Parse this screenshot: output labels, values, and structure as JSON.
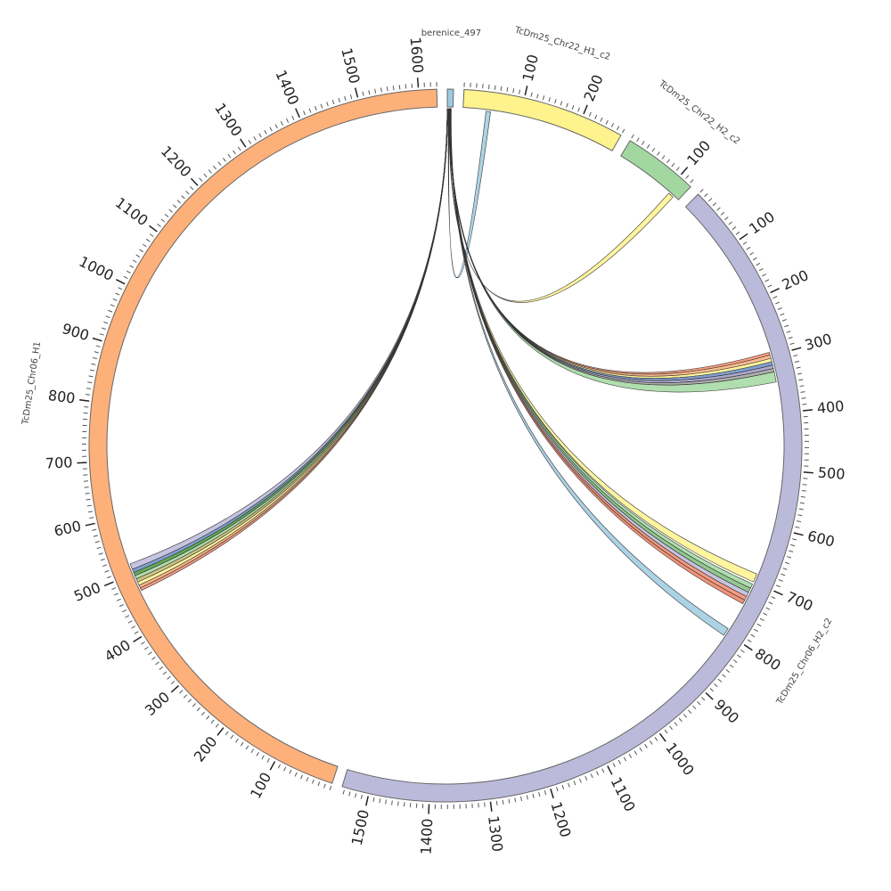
{
  "chart_data": {
    "type": "circos",
    "minor_tick_step": 10,
    "segments": [
      {
        "name": "berenice_497",
        "length": 10,
        "color": "#9ecae1",
        "ticks": []
      },
      {
        "name": "TcDm25_Chr22_H1_c2",
        "length": 270,
        "color": "#fef38d",
        "ticks": [
          100,
          200
        ]
      },
      {
        "name": "TcDm25_Chr22_H2_c2",
        "length": 125,
        "color": "#a2d8a0",
        "ticks": [
          100
        ]
      },
      {
        "name": "TcDm25_Chr06_H2_c2",
        "length": 1545,
        "color": "#bcbadb",
        "ticks": [
          100,
          200,
          300,
          400,
          500,
          600,
          700,
          800,
          900,
          1000,
          1100,
          1200,
          1300,
          1400,
          1500
        ]
      },
      {
        "name": "TcDm25_Chr06_H1",
        "length": 1630,
        "color": "#fdb07a",
        "ticks": [
          100,
          200,
          300,
          400,
          500,
          600,
          700,
          800,
          900,
          1000,
          1100,
          1200,
          1300,
          1400,
          1500,
          1600
        ]
      }
    ],
    "links": [
      {
        "source": [
          2,
          3
        ],
        "target": "TcDm25_Chr22_H1_c2",
        "target_range": [
          40,
          48
        ],
        "color": "#9ecae1"
      },
      {
        "source": [
          3,
          4
        ],
        "target": "TcDm25_Chr22_H2_c2",
        "target_range": [
          105,
          115
        ],
        "color": "#fef38d"
      },
      {
        "source": [
          4,
          5
        ],
        "target": "TcDm25_Chr06_H2_c2",
        "target_range": [
          293,
          298
        ],
        "color": "#f4896b"
      },
      {
        "source": [
          4,
          5
        ],
        "target": "TcDm25_Chr06_H2_c2",
        "target_range": [
          298,
          304
        ],
        "color": "#fdb07a"
      },
      {
        "source": [
          4,
          5
        ],
        "target": "TcDm25_Chr06_H2_c2",
        "target_range": [
          304,
          310
        ],
        "color": "#fef38d"
      },
      {
        "source": [
          4,
          5
        ],
        "target": "TcDm25_Chr06_H2_c2",
        "target_range": [
          310,
          316
        ],
        "color": "#6b8fc6"
      },
      {
        "source": [
          4,
          5
        ],
        "target": "TcDm25_Chr06_H2_c2",
        "target_range": [
          316,
          322
        ],
        "color": "#9e9ac8"
      },
      {
        "source": [
          4,
          5
        ],
        "target": "TcDm25_Chr06_H2_c2",
        "target_range": [
          322,
          328
        ],
        "color": "#a0a0a0"
      },
      {
        "source": [
          4,
          5
        ],
        "target": "TcDm25_Chr06_H2_c2",
        "target_range": [
          328,
          346
        ],
        "color": "#a2d8a0"
      },
      {
        "source": [
          5,
          6
        ],
        "target": "TcDm25_Chr06_H2_c2",
        "target_range": [
          685,
          700
        ],
        "color": "#fef38d"
      },
      {
        "source": [
          5,
          6
        ],
        "target": "TcDm25_Chr06_H2_c2",
        "target_range": [
          704,
          712
        ],
        "color": "#a2d8a0"
      },
      {
        "source": [
          5,
          6
        ],
        "target": "TcDm25_Chr06_H2_c2",
        "target_range": [
          712,
          720
        ],
        "color": "#7fbf7b"
      },
      {
        "source": [
          5,
          6
        ],
        "target": "TcDm25_Chr06_H2_c2",
        "target_range": [
          720,
          728
        ],
        "color": "#bcbadb"
      },
      {
        "source": [
          5,
          6
        ],
        "target": "TcDm25_Chr06_H2_c2",
        "target_range": [
          728,
          735
        ],
        "color": "#f4896b"
      },
      {
        "source": [
          5,
          6
        ],
        "target": "TcDm25_Chr06_H2_c2",
        "target_range": [
          735,
          742
        ],
        "color": "#f08060"
      },
      {
        "source": [
          6,
          7
        ],
        "target": "TcDm25_Chr06_H2_c2",
        "target_range": [
          792,
          806
        ],
        "color": "#9ecae1"
      },
      {
        "source": [
          0,
          1
        ],
        "target": "TcDm25_Chr06_H1",
        "target_range": [
          468,
          473
        ],
        "color": "#f4896b"
      },
      {
        "source": [
          0,
          1
        ],
        "target": "TcDm25_Chr06_H1",
        "target_range": [
          473,
          478
        ],
        "color": "#fdb07a"
      },
      {
        "source": [
          0,
          1
        ],
        "target": "TcDm25_Chr06_H1",
        "target_range": [
          478,
          484
        ],
        "color": "#fef38d"
      },
      {
        "source": [
          0,
          1
        ],
        "target": "TcDm25_Chr06_H1",
        "target_range": [
          484,
          490
        ],
        "color": "#c8b870"
      },
      {
        "source": [
          0,
          1
        ],
        "target": "TcDm25_Chr06_H1",
        "target_range": [
          490,
          496
        ],
        "color": "#a2d8a0"
      },
      {
        "source": [
          0,
          1
        ],
        "target": "TcDm25_Chr06_H1",
        "target_range": [
          496,
          502
        ],
        "color": "#4a9a3a"
      },
      {
        "source": [
          0,
          1
        ],
        "target": "TcDm25_Chr06_H1",
        "target_range": [
          502,
          508
        ],
        "color": "#6b8fc6"
      },
      {
        "source": [
          0,
          1
        ],
        "target": "TcDm25_Chr06_H1",
        "target_range": [
          508,
          518
        ],
        "color": "#bcbadb"
      }
    ]
  }
}
